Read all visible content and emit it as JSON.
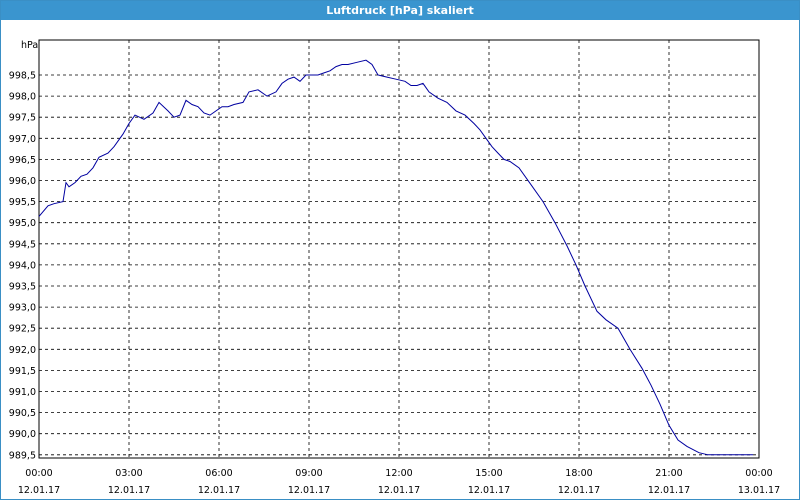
{
  "window": {
    "title": "Luftdruck [hPa] skaliert"
  },
  "chart_data": {
    "type": "line",
    "title": "Luftdruck [hPa] skaliert",
    "unit_label": "hPa",
    "xlabel": "",
    "ylabel": "",
    "grid": true,
    "ylim": [
      989.5,
      998.9
    ],
    "xlim_hours": [
      0,
      24
    ],
    "y_ticks": [
      "998,5",
      "998,0",
      "997,5",
      "997,0",
      "996,5",
      "996,0",
      "995,5",
      "995,0",
      "994,5",
      "994,0",
      "993,5",
      "993,0",
      "992,5",
      "992,0",
      "991,5",
      "991,0",
      "990,5",
      "990,0",
      "989,5"
    ],
    "x_ticks": [
      {
        "time": "00:00",
        "date": "12.01.17"
      },
      {
        "time": "03:00",
        "date": "12.01.17"
      },
      {
        "time": "06:00",
        "date": "12.01.17"
      },
      {
        "time": "09:00",
        "date": "12.01.17"
      },
      {
        "time": "12:00",
        "date": "12.01.17"
      },
      {
        "time": "15:00",
        "date": "12.01.17"
      },
      {
        "time": "18:00",
        "date": "12.01.17"
      },
      {
        "time": "21:00",
        "date": "12.01.17"
      },
      {
        "time": "00:00",
        "date": "13.01.17"
      }
    ],
    "line_color": "#0000a0",
    "series": [
      {
        "x_hours": [
          0.0,
          0.3,
          0.5,
          0.8,
          0.9,
          1.0,
          1.2,
          1.4,
          1.6,
          1.8,
          2.0,
          2.3,
          2.5,
          2.8,
          3.0,
          3.2,
          3.5,
          3.8,
          4.0,
          4.3,
          4.5,
          4.7,
          4.9,
          5.1,
          5.3,
          5.5,
          5.7,
          5.9,
          6.1,
          6.3,
          6.5,
          6.8,
          7.0,
          7.3,
          7.6,
          7.9,
          8.1,
          8.3,
          8.5,
          8.7,
          8.9,
          9.1,
          9.3,
          9.5,
          9.7,
          9.9,
          10.1,
          10.3,
          10.6,
          10.9,
          11.1,
          11.3,
          11.6,
          11.9,
          12.2,
          12.4,
          12.6,
          12.8,
          13.0,
          13.3,
          13.6,
          13.9,
          14.2,
          14.5,
          14.7,
          14.9,
          15.1,
          15.3,
          15.5,
          15.7,
          16.0,
          16.4,
          16.8,
          17.2,
          17.6,
          17.9,
          18.2,
          18.6,
          18.9,
          19.3,
          19.7,
          20.1,
          20.4,
          20.7,
          21.0,
          21.3,
          21.6,
          22.0,
          22.3,
          22.7,
          23.0,
          23.4,
          23.8
        ],
        "y": [
          995.15,
          995.4,
          995.45,
          995.5,
          995.95,
          995.85,
          995.95,
          996.1,
          996.15,
          996.3,
          996.55,
          996.65,
          996.8,
          997.1,
          997.35,
          997.55,
          997.45,
          997.6,
          997.85,
          997.65,
          997.5,
          997.55,
          997.9,
          997.8,
          997.75,
          997.6,
          997.55,
          997.65,
          997.75,
          997.75,
          997.8,
          997.85,
          998.1,
          998.15,
          998.0,
          998.1,
          998.3,
          998.4,
          998.45,
          998.35,
          998.5,
          998.5,
          998.5,
          998.55,
          998.6,
          998.7,
          998.75,
          998.75,
          998.8,
          998.85,
          998.75,
          998.5,
          998.45,
          998.4,
          998.35,
          998.25,
          998.25,
          998.3,
          998.1,
          997.95,
          997.85,
          997.65,
          997.55,
          997.35,
          997.2,
          997.0,
          996.8,
          996.65,
          996.5,
          996.45,
          996.3,
          995.9,
          995.5,
          995.0,
          994.45,
          994.0,
          993.5,
          992.9,
          992.7,
          992.5,
          992.0,
          991.55,
          991.15,
          990.7,
          990.2,
          989.85,
          989.7,
          989.55,
          989.5,
          989.5,
          989.5,
          989.5,
          989.5
        ]
      }
    ]
  }
}
